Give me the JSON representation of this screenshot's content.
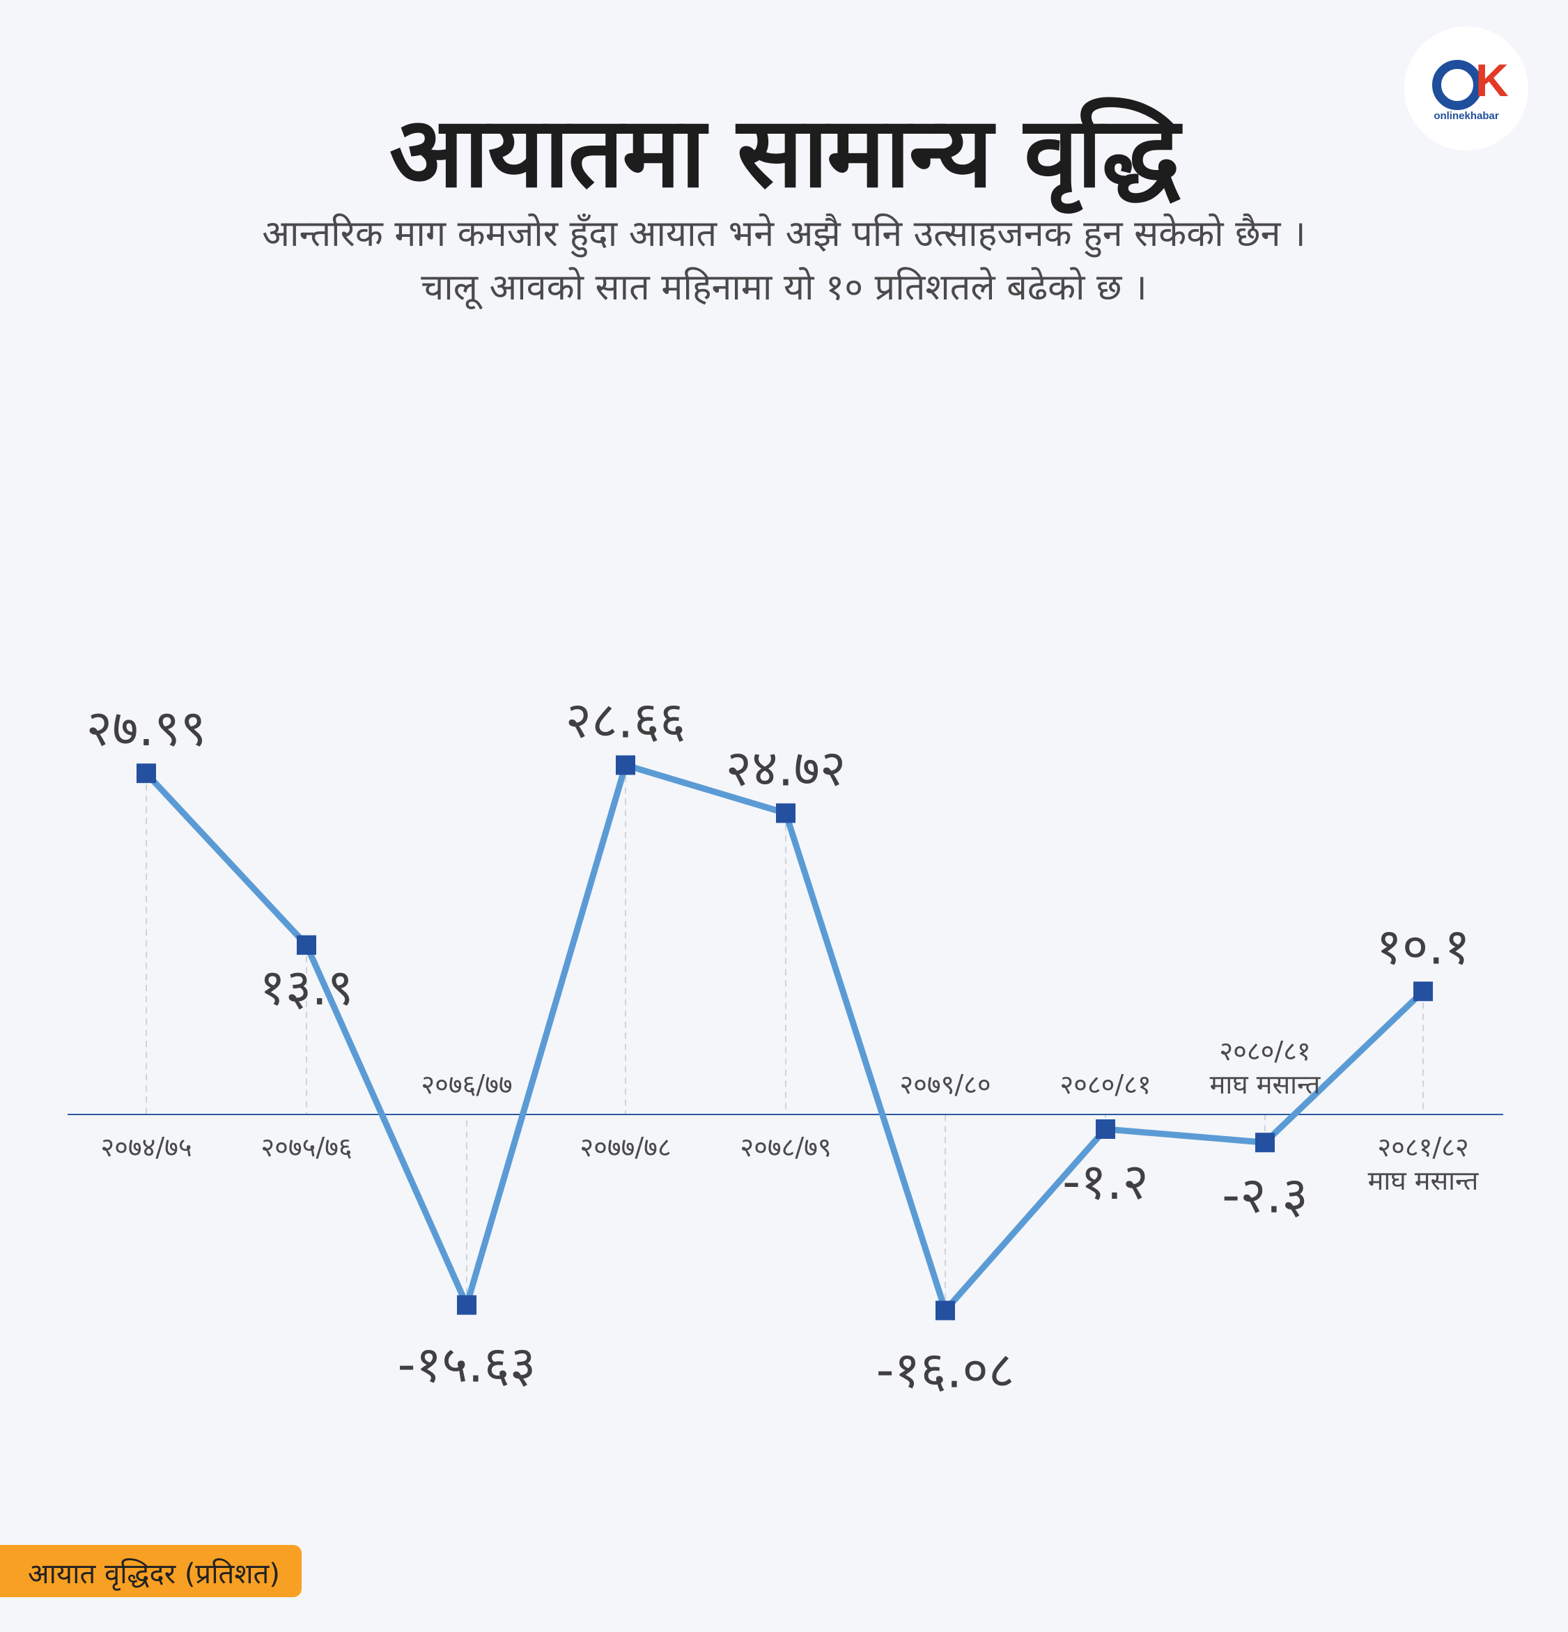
{
  "title": "आयातमा सामान्य वृद्धि",
  "subtitle": [
    "आन्तरिक माग कमजोर हुँदा आयात भने अझै पनि उत्साहजनक हुन सकेको छैन ।",
    "चालू आवको सात महिनामा यो १० प्रतिशतले बढेको छ ।"
  ],
  "logo": {
    "brand": "onlinekhabar.com",
    "text": "onlinekhabar"
  },
  "legend": {
    "label": "आयात वृद्धिदर  (प्रतिशत)"
  },
  "colors": {
    "line": "#5b9bd5",
    "marker": "#2450a0",
    "axis": "#2c5aa0",
    "legend_bg": "#f8a023"
  },
  "chart_data": {
    "type": "line",
    "title": "आयातमा सामान्य वृद्धि",
    "ylabel": "आयात वृद्धिदर  (प्रतिशत)",
    "categories": [
      [
        "२०७४/७५"
      ],
      [
        "२०७५/७६"
      ],
      [
        "२०७६/७७"
      ],
      [
        "२०७७/७८"
      ],
      [
        "२०७८/७९"
      ],
      [
        "२०७९/८०"
      ],
      [
        "२०८०/८१"
      ],
      [
        "२०८०/८१",
        "माघ मसान्त"
      ],
      [
        "२०८१/८२",
        "माघ मसान्त"
      ]
    ],
    "values": [
      27.99,
      13.9,
      -15.63,
      28.66,
      24.72,
      -16.08,
      -1.2,
      -2.3,
      10.1
    ],
    "value_labels": [
      "२७.९९",
      "१३.९",
      "-१५.६३",
      "२८.६६",
      "२४.७२",
      "-१६.०८",
      "-१.२",
      "-२.३",
      "१०.१"
    ],
    "ylim": [
      -20,
      32
    ],
    "grid": "vertical dashed",
    "legend": "bottom-left"
  }
}
